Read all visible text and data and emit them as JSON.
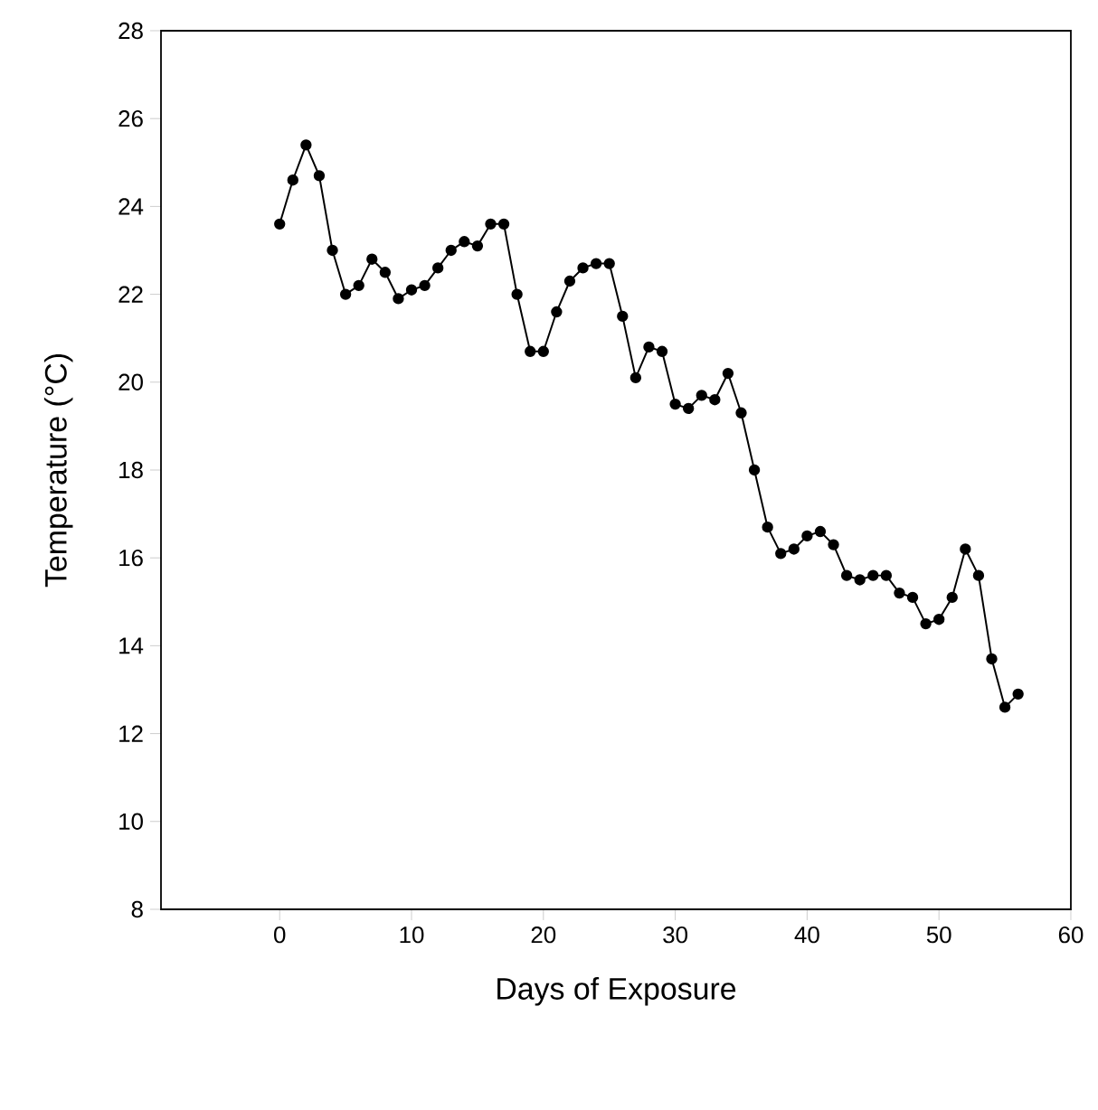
{
  "chart_data": {
    "type": "line",
    "xlabel": "Days of Exposure",
    "ylabel": "Temperature (°C)",
    "x": [
      0,
      1,
      2,
      3,
      4,
      5,
      6,
      7,
      8,
      9,
      10,
      11,
      12,
      13,
      14,
      15,
      16,
      17,
      18,
      19,
      20,
      21,
      22,
      23,
      24,
      25,
      26,
      27,
      28,
      29,
      30,
      31,
      32,
      33,
      34,
      35,
      36,
      37,
      38,
      39,
      40,
      41,
      42,
      43,
      44,
      45,
      46,
      47,
      48,
      49,
      50,
      51,
      52,
      53,
      54,
      55,
      56
    ],
    "series": [
      {
        "color": "#000000",
        "values": [
          23.6,
          24.6,
          25.4,
          24.7,
          23.0,
          22.0,
          22.2,
          22.8,
          22.5,
          21.9,
          22.1,
          22.2,
          22.6,
          23.0,
          23.2,
          23.1,
          23.6,
          23.6,
          22.0,
          20.7,
          20.7,
          21.6,
          22.3,
          22.6,
          22.7,
          22.7,
          21.5,
          20.1,
          20.8,
          20.7,
          19.5,
          19.4,
          19.7,
          19.6,
          20.2,
          19.3,
          18.0,
          16.7,
          16.1,
          16.2,
          16.5,
          16.6,
          16.3,
          15.6,
          15.5,
          15.6,
          15.6,
          15.2,
          15.1,
          14.5,
          14.6,
          15.1,
          16.2,
          15.6,
          13.7,
          12.6,
          12.9
        ]
      }
    ],
    "xlim": [
      -9,
      60
    ],
    "ylim": [
      8,
      28
    ],
    "xticks": [
      0,
      10,
      20,
      30,
      40,
      50,
      60
    ],
    "yticks": [
      8,
      10,
      12,
      14,
      16,
      18,
      20,
      22,
      24,
      26,
      28
    ],
    "marker": "circle",
    "line_style": "solid",
    "grid": false
  }
}
